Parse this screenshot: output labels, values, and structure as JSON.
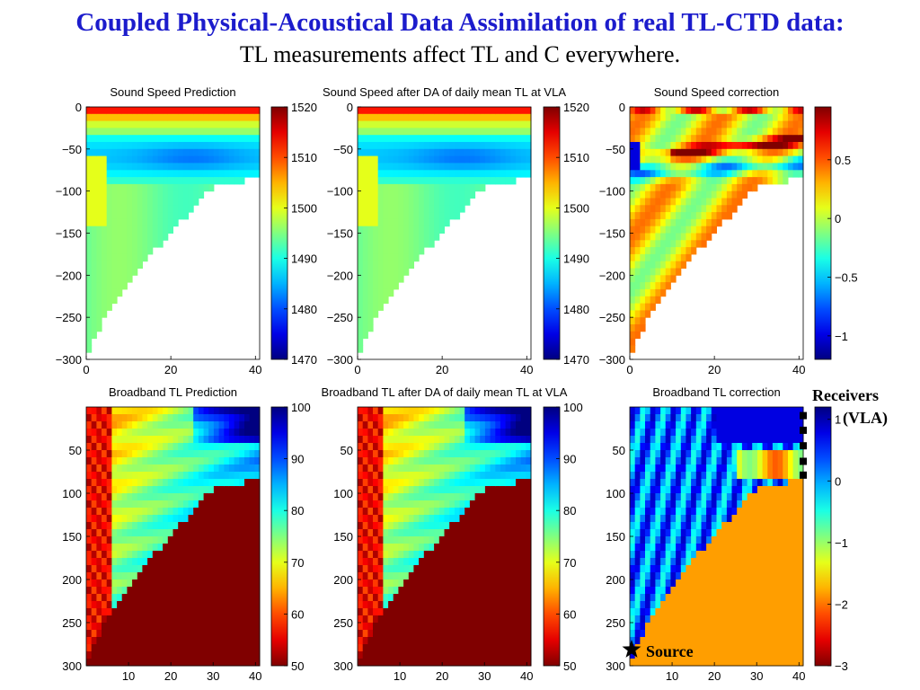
{
  "slide": {
    "title": "Coupled Physical-Acoustical Data Assimilation of real TL-CTD data:",
    "subtitle": "TL measurements affect TL and C everywhere."
  },
  "annotations": {
    "receivers_line1": "Receivers",
    "receivers_line2": "(VLA)",
    "source": "Source",
    "source_icon": "star-icon"
  },
  "colormap": "jet",
  "chart_data": [
    {
      "type": "heatmap",
      "title": "Sound Speed Prediction",
      "xlim": [
        0,
        41
      ],
      "ylim": [
        -300,
        0
      ],
      "xticks": [
        0,
        20,
        40
      ],
      "yticks": [
        0,
        -50,
        -100,
        -150,
        -200,
        -250,
        -300
      ],
      "ytick_labels": [
        "0",
        "−50",
        "−100",
        "−150",
        "−200",
        "−250",
        "−300"
      ],
      "colorbar": {
        "range": [
          1470,
          1520
        ],
        "ticks": [
          1470,
          1480,
          1490,
          1500,
          1510,
          1520
        ]
      }
    },
    {
      "type": "heatmap",
      "title": "Sound Speed after DA of daily mean TL at VLA",
      "xlim": [
        0,
        41
      ],
      "ylim": [
        -300,
        0
      ],
      "xticks": [
        0,
        20,
        40
      ],
      "yticks": [
        0,
        -50,
        -100,
        -150,
        -200,
        -250,
        -300
      ],
      "ytick_labels": [
        "0",
        "−50",
        "−100",
        "−150",
        "−200",
        "−250",
        "−300"
      ],
      "colorbar": {
        "range": [
          1470,
          1520
        ],
        "ticks": [
          1470,
          1480,
          1490,
          1500,
          1510,
          1520
        ]
      }
    },
    {
      "type": "heatmap",
      "title": "Sound Speed correction",
      "xlim": [
        0,
        41
      ],
      "ylim": [
        -300,
        0
      ],
      "xticks": [
        0,
        20,
        40
      ],
      "yticks": [
        0,
        -50,
        -100,
        -150,
        -200,
        -250,
        -300
      ],
      "ytick_labels": [
        "0",
        "−50",
        "−100",
        "−150",
        "−200",
        "−250",
        "−300"
      ],
      "colorbar": {
        "range": [
          -1.2,
          0.95
        ],
        "ticks": [
          0.5,
          0,
          -0.5,
          -1
        ],
        "tick_labels": [
          "0.5",
          "0",
          "−0.5",
          "−1"
        ]
      }
    },
    {
      "type": "heatmap",
      "title": "Broadband TL Prediction",
      "xlim": [
        0,
        41
      ],
      "ylim": [
        300,
        0
      ],
      "xticks": [
        10,
        20,
        30,
        40
      ],
      "yticks": [
        50,
        100,
        150,
        200,
        250,
        300
      ],
      "ytick_labels": [
        "50",
        "100",
        "150",
        "200",
        "250",
        "300"
      ],
      "colorbar": {
        "range": [
          50,
          100
        ],
        "ticks": [
          50,
          60,
          70,
          80,
          90,
          100
        ],
        "reversed": true
      }
    },
    {
      "type": "heatmap",
      "title": "Broadband TL after DA of daily mean TL at VLA",
      "xlim": [
        0,
        41
      ],
      "ylim": [
        300,
        0
      ],
      "xticks": [
        10,
        20,
        30,
        40
      ],
      "yticks": [
        50,
        100,
        150,
        200,
        250,
        300
      ],
      "ytick_labels": [
        "50",
        "100",
        "150",
        "200",
        "250",
        "300"
      ],
      "colorbar": {
        "range": [
          50,
          100
        ],
        "ticks": [
          50,
          60,
          70,
          80,
          90,
          100
        ],
        "reversed": true
      }
    },
    {
      "type": "heatmap",
      "title": "Broadband TL correction",
      "xlim": [
        0,
        41
      ],
      "ylim": [
        300,
        0
      ],
      "xticks": [
        10,
        20,
        30,
        40
      ],
      "yticks": [
        50,
        100,
        150,
        200,
        250,
        300
      ],
      "ytick_labels": [
        "50",
        "100",
        "150",
        "200",
        "250",
        "300"
      ],
      "colorbar": {
        "range": [
          -3,
          1.2
        ],
        "ticks": [
          1,
          0,
          -1,
          -2,
          -3
        ],
        "tick_labels": [
          "1",
          "0",
          "−1",
          "−2",
          "−3"
        ],
        "reversed": true
      },
      "receivers_range_km": 41,
      "receiver_depths": [
        10,
        27,
        45,
        63,
        79
      ]
    }
  ]
}
